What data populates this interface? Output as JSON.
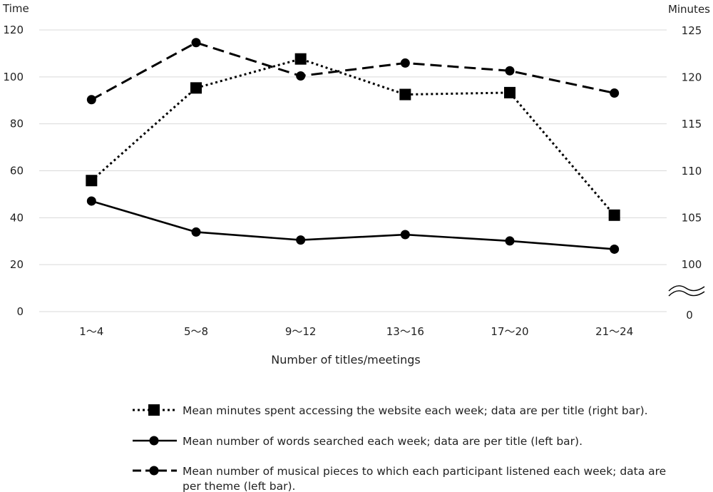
{
  "chart_data": {
    "type": "line",
    "xlabel": "Number of titles/meetings",
    "categories": [
      "1～4",
      "5～8",
      "9～12",
      "13～16",
      "17～20",
      "21～24"
    ],
    "left_axis": {
      "title": "Time",
      "range": [
        0,
        120
      ],
      "ticks": [
        "0",
        "20",
        "40",
        "60",
        "80",
        "100",
        "120"
      ]
    },
    "right_axis": {
      "title": "Minutes",
      "range": [
        100,
        125
      ],
      "break_below": true,
      "ticks": [
        "100",
        "105",
        "110",
        "115",
        "120",
        "125"
      ],
      "bottom_label": "0"
    },
    "grid": "horizontal",
    "legend_position": "bottom",
    "series": [
      {
        "name_lines": [
          "Mean minutes spent accessing the website each week; data are per title (right bar)."
        ],
        "axis": "right",
        "line_style": "dotted",
        "marker": "square",
        "values": [
          108.9,
          118.8,
          121.9,
          118.1,
          118.3,
          105.2
        ]
      },
      {
        "name_lines": [
          "Mean number of words searched each week; data are per title (left bar)."
        ],
        "axis": "left",
        "line_style": "solid",
        "marker": "circle",
        "values": [
          47.1,
          33.9,
          30.5,
          32.8,
          30.1,
          26.6
        ]
      },
      {
        "name_lines": [
          "Mean number of musical pieces to which each participant listened each week; data are",
          "per theme (left bar)."
        ],
        "axis": "left",
        "line_style": "dashed",
        "marker": "circle",
        "values": [
          90.3,
          114.6,
          100.4,
          105.9,
          102.6,
          93.1
        ]
      }
    ],
    "colors": {
      "line": "#000000",
      "grid": "#d9d9d9"
    }
  }
}
